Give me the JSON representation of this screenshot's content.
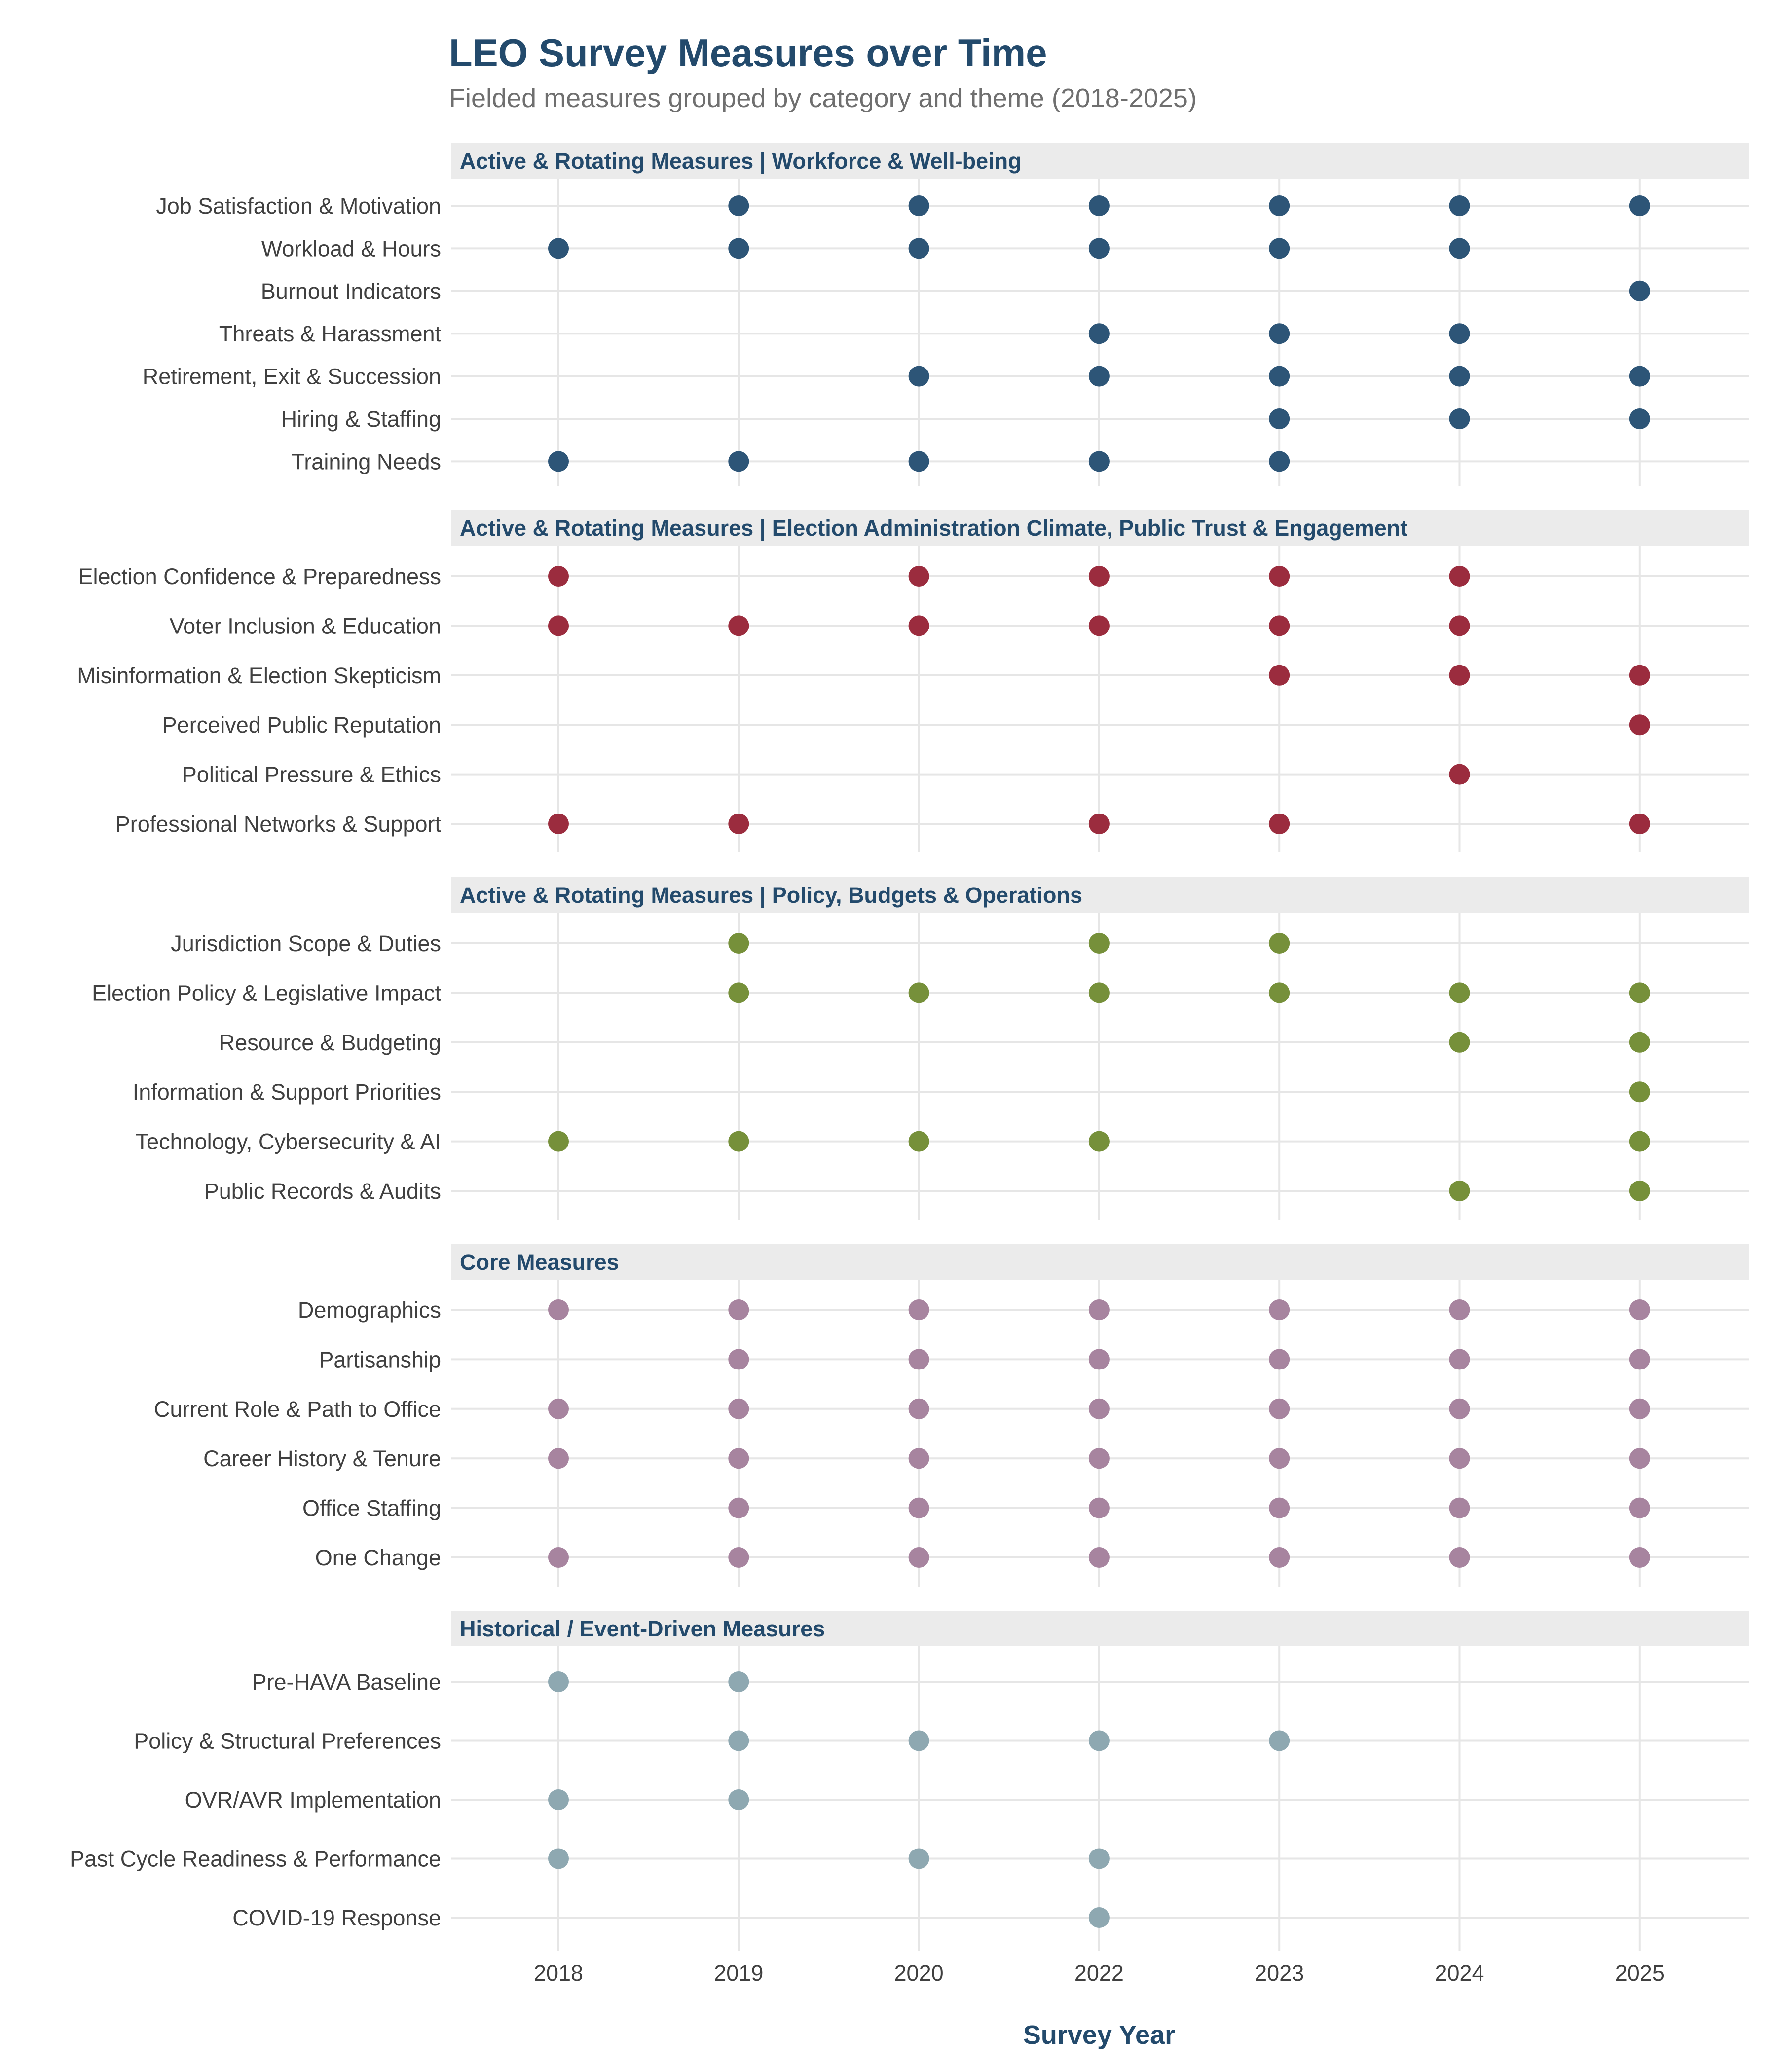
{
  "header": {
    "title": "LEO Survey Measures over Time",
    "subtitle": "Fielded measures grouped by category and theme (2018-2025)"
  },
  "chart_data": {
    "type": "scatter",
    "title": "LEO Survey Measures over Time",
    "subtitle": "Fielded measures grouped by category and theme (2018-2025)",
    "xlabel": "Survey Year",
    "ylabel": "",
    "categories": [
      "2018",
      "2019",
      "2020",
      "2022",
      "2023",
      "2024",
      "2025"
    ],
    "grid": true,
    "legend": "none",
    "panels": [
      {
        "label": "Active & Rotating Measures | Workforce & Well-being",
        "color": "#2d5577",
        "rows": [
          {
            "name": "Job Satisfaction & Motivation",
            "years": [
              "2019",
              "2020",
              "2022",
              "2023",
              "2024",
              "2025"
            ]
          },
          {
            "name": "Workload & Hours",
            "years": [
              "2018",
              "2019",
              "2020",
              "2022",
              "2023",
              "2024"
            ]
          },
          {
            "name": "Burnout Indicators",
            "years": [
              "2025"
            ]
          },
          {
            "name": "Threats & Harassment",
            "years": [
              "2022",
              "2023",
              "2024"
            ]
          },
          {
            "name": "Retirement, Exit & Succession",
            "years": [
              "2020",
              "2022",
              "2023",
              "2024",
              "2025"
            ]
          },
          {
            "name": "Hiring & Staffing",
            "years": [
              "2023",
              "2024",
              "2025"
            ]
          },
          {
            "name": "Training Needs",
            "years": [
              "2018",
              "2019",
              "2020",
              "2022",
              "2023"
            ]
          }
        ]
      },
      {
        "label": "Active & Rotating Measures | Election Administration Climate, Public Trust & Engagement",
        "color": "#9b2c3e",
        "rows": [
          {
            "name": "Election Confidence & Preparedness",
            "years": [
              "2018",
              "2020",
              "2022",
              "2023",
              "2024"
            ]
          },
          {
            "name": "Voter Inclusion & Education",
            "years": [
              "2018",
              "2019",
              "2020",
              "2022",
              "2023",
              "2024"
            ]
          },
          {
            "name": "Misinformation & Election Skepticism",
            "years": [
              "2023",
              "2024",
              "2025"
            ]
          },
          {
            "name": "Perceived Public Reputation",
            "years": [
              "2025"
            ]
          },
          {
            "name": "Political Pressure & Ethics",
            "years": [
              "2024"
            ]
          },
          {
            "name": "Professional Networks & Support",
            "years": [
              "2018",
              "2019",
              "2022",
              "2023",
              "2025"
            ]
          }
        ]
      },
      {
        "label": "Active & Rotating Measures | Policy, Budgets & Operations",
        "color": "#76903a",
        "rows": [
          {
            "name": "Jurisdiction Scope & Duties",
            "years": [
              "2019",
              "2022",
              "2023"
            ]
          },
          {
            "name": "Election Policy & Legislative Impact",
            "years": [
              "2019",
              "2020",
              "2022",
              "2023",
              "2024",
              "2025"
            ]
          },
          {
            "name": "Resource & Budgeting",
            "years": [
              "2024",
              "2025"
            ]
          },
          {
            "name": "Information & Support Priorities",
            "years": [
              "2025"
            ]
          },
          {
            "name": "Technology, Cybersecurity & AI",
            "years": [
              "2018",
              "2019",
              "2020",
              "2022",
              "2025"
            ]
          },
          {
            "name": "Public Records & Audits",
            "years": [
              "2024",
              "2025"
            ]
          }
        ]
      },
      {
        "label": "Core Measures",
        "color": "#a7849f",
        "rows": [
          {
            "name": "Demographics",
            "years": [
              "2018",
              "2019",
              "2020",
              "2022",
              "2023",
              "2024",
              "2025"
            ]
          },
          {
            "name": "Partisanship",
            "years": [
              "2019",
              "2020",
              "2022",
              "2023",
              "2024",
              "2025"
            ]
          },
          {
            "name": "Current Role & Path to Office",
            "years": [
              "2018",
              "2019",
              "2020",
              "2022",
              "2023",
              "2024",
              "2025"
            ]
          },
          {
            "name": "Career History & Tenure",
            "years": [
              "2018",
              "2019",
              "2020",
              "2022",
              "2023",
              "2024",
              "2025"
            ]
          },
          {
            "name": "Office Staffing",
            "years": [
              "2019",
              "2020",
              "2022",
              "2023",
              "2024",
              "2025"
            ]
          },
          {
            "name": "One Change",
            "years": [
              "2018",
              "2019",
              "2020",
              "2022",
              "2023",
              "2024",
              "2025"
            ]
          }
        ]
      },
      {
        "label": "Historical / Event-Driven Measures",
        "color": "#8ea8b1",
        "rows": [
          {
            "name": "Pre-HAVA Baseline",
            "years": [
              "2018",
              "2019"
            ]
          },
          {
            "name": "Policy & Structural Preferences",
            "years": [
              "2019",
              "2020",
              "2022",
              "2023"
            ]
          },
          {
            "name": "OVR/AVR Implementation",
            "years": [
              "2018",
              "2019"
            ]
          },
          {
            "name": "Past Cycle Readiness & Performance",
            "years": [
              "2018",
              "2020",
              "2022"
            ]
          },
          {
            "name": "COVID-19 Response",
            "years": [
              "2022"
            ]
          }
        ]
      }
    ]
  }
}
